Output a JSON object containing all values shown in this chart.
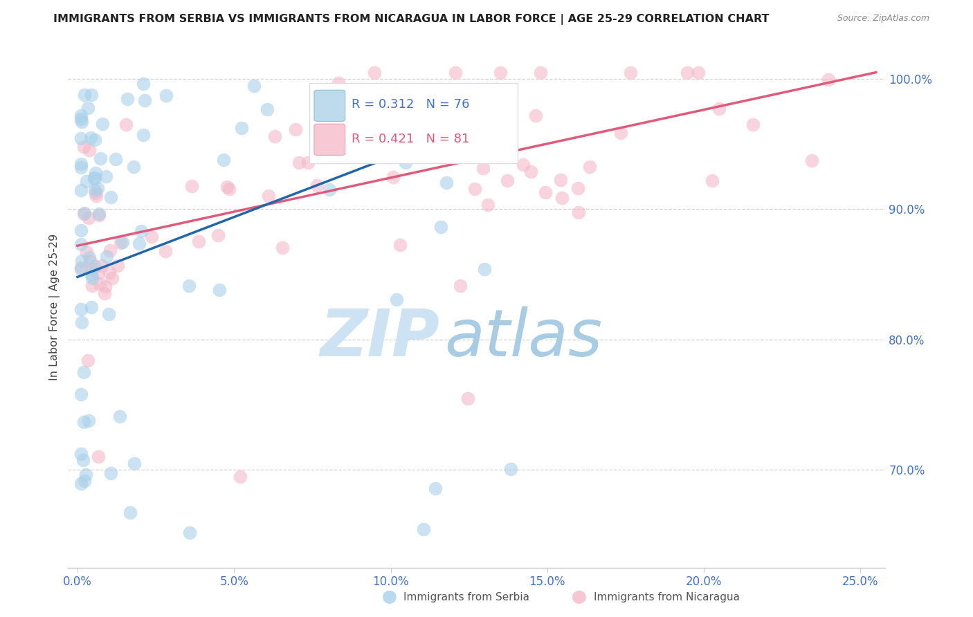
{
  "title": "IMMIGRANTS FROM SERBIA VS IMMIGRANTS FROM NICARAGUA IN LABOR FORCE | AGE 25-29 CORRELATION CHART",
  "source": "Source: ZipAtlas.com",
  "ylabel": "In Labor Force | Age 25-29",
  "xlim": [
    -0.003,
    0.258
  ],
  "ylim": [
    0.625,
    1.025
  ],
  "xtick_values": [
    0.0,
    0.05,
    0.1,
    0.15,
    0.2,
    0.25
  ],
  "xtick_labels": [
    "0.0%",
    "5.0%",
    "10.0%",
    "15.0%",
    "20.0%",
    "25.0%"
  ],
  "ytick_values": [
    0.7,
    0.8,
    0.9,
    1.0
  ],
  "ytick_labels": [
    "70.0%",
    "80.0%",
    "90.0%",
    "100.0%"
  ],
  "serbia_color": "#a8d0e8",
  "nicaragua_color": "#f4b8c8",
  "serbia_R": 0.312,
  "serbia_N": 76,
  "nicaragua_R": 0.421,
  "nicaragua_N": 81,
  "serbia_trend_color": "#2166ac",
  "nicaragua_trend_color": "#e05a7a",
  "grid_color": "#cccccc",
  "axis_label_color": "#4472c4",
  "watermark_zip": "ZIP",
  "watermark_atlas": "atlas",
  "watermark_color_zip": "#cde4f5",
  "watermark_color_atlas": "#8bbdd9",
  "serbia_trend_x0": 0.0,
  "serbia_trend_x1": 0.138,
  "serbia_trend_y0": 0.848,
  "serbia_trend_y1": 0.975,
  "nicaragua_trend_x0": 0.0,
  "nicaragua_trend_x1": 0.255,
  "nicaragua_trend_y0": 0.872,
  "nicaragua_trend_y1": 1.005
}
